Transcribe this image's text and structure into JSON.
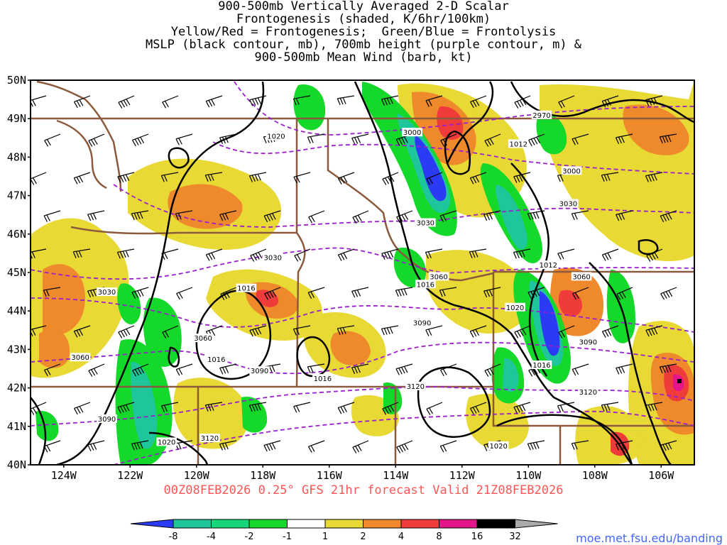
{
  "title_lines": [
    "900-500mb Vertically Averaged 2-D Scalar",
    "Frontogenesis (shaded, K/6hr/100km)",
    "Yellow/Red = Frontogenesis;  Green/Blue = Frontolysis",
    "MSLP (black contour, mb), 700mb height (purple contour, m) &",
    "900-500mb Mean Wind (barb, kt)"
  ],
  "forecast_label": "00Z08FEB2026 0.25° GFS 21hr forecast Valid 21Z08FEB2026",
  "site_label": "moe.met.fsu.edu/banding",
  "map": {
    "lon_range": [
      -125,
      -105
    ],
    "lat_range": [
      40,
      50
    ],
    "lat_ticks": [
      "40N",
      "41N",
      "42N",
      "43N",
      "44N",
      "45N",
      "46N",
      "47N",
      "48N",
      "49N",
      "50N"
    ],
    "lon_ticks": [
      "124W",
      "122W",
      "120W",
      "118W",
      "116W",
      "114W",
      "112W",
      "110W",
      "108W",
      "106W"
    ],
    "mslp_labels": [
      {
        "text": "1020",
        "lon": -117.6,
        "lat": 48.55
      },
      {
        "text": "1012",
        "lon": -110.3,
        "lat": 48.35
      },
      {
        "text": "1016",
        "lon": -118.5,
        "lat": 44.6
      },
      {
        "text": "1016",
        "lon": -119.4,
        "lat": 42.75
      },
      {
        "text": "1016",
        "lon": -116.2,
        "lat": 42.25
      },
      {
        "text": "1016",
        "lon": -113.1,
        "lat": 44.7
      },
      {
        "text": "1020",
        "lon": -110.4,
        "lat": 44.1
      },
      {
        "text": "1012",
        "lon": -109.4,
        "lat": 45.2
      },
      {
        "text": "1016",
        "lon": -109.6,
        "lat": 42.6
      },
      {
        "text": "1020",
        "lon": -120.9,
        "lat": 40.6
      },
      {
        "text": "1020",
        "lon": -110.9,
        "lat": 40.5
      }
    ],
    "height_labels": [
      {
        "text": "2970",
        "lon": -109.6,
        "lat": 49.1
      },
      {
        "text": "3000",
        "lon": -113.5,
        "lat": 48.65
      },
      {
        "text": "3000",
        "lon": -108.7,
        "lat": 47.65
      },
      {
        "text": "3030",
        "lon": -108.8,
        "lat": 46.8
      },
      {
        "text": "3030",
        "lon": -113.1,
        "lat": 46.3
      },
      {
        "text": "3030",
        "lon": -117.7,
        "lat": 45.4
      },
      {
        "text": "3030",
        "lon": -122.7,
        "lat": 44.5
      },
      {
        "text": "3060",
        "lon": -112.7,
        "lat": 44.9
      },
      {
        "text": "3060",
        "lon": -108.4,
        "lat": 44.9
      },
      {
        "text": "3060",
        "lon": -119.8,
        "lat": 43.3
      },
      {
        "text": "3060",
        "lon": -123.5,
        "lat": 42.8
      },
      {
        "text": "3090",
        "lon": -113.2,
        "lat": 43.7
      },
      {
        "text": "3090",
        "lon": -118.1,
        "lat": 42.45
      },
      {
        "text": "3090",
        "lon": -108.2,
        "lat": 43.2
      },
      {
        "text": "3120",
        "lon": -113.4,
        "lat": 42.05
      },
      {
        "text": "3120",
        "lon": -108.2,
        "lat": 41.9
      },
      {
        "text": "3090",
        "lon": -122.7,
        "lat": 41.2
      },
      {
        "text": "3120",
        "lon": -119.6,
        "lat": 40.7
      }
    ]
  },
  "colorbar": {
    "labels": [
      "-8",
      "-4",
      "-2",
      "-1",
      "1",
      "2",
      "4",
      "8",
      "16",
      "32"
    ],
    "colors": [
      "#2b3bf5",
      "#1fc69b",
      "#17d57a",
      "#14d82a",
      "#ffffff",
      "#e8d935",
      "#ee8a2b",
      "#f03b3b",
      "#e4168a",
      "#000000",
      "#aaaaaa"
    ]
  },
  "colors": {
    "mslp": "#000000",
    "height": "#9b1fcf",
    "border": "#8b5a3c",
    "forecast_text": "#ff5555",
    "site_text": "#4466ff"
  }
}
